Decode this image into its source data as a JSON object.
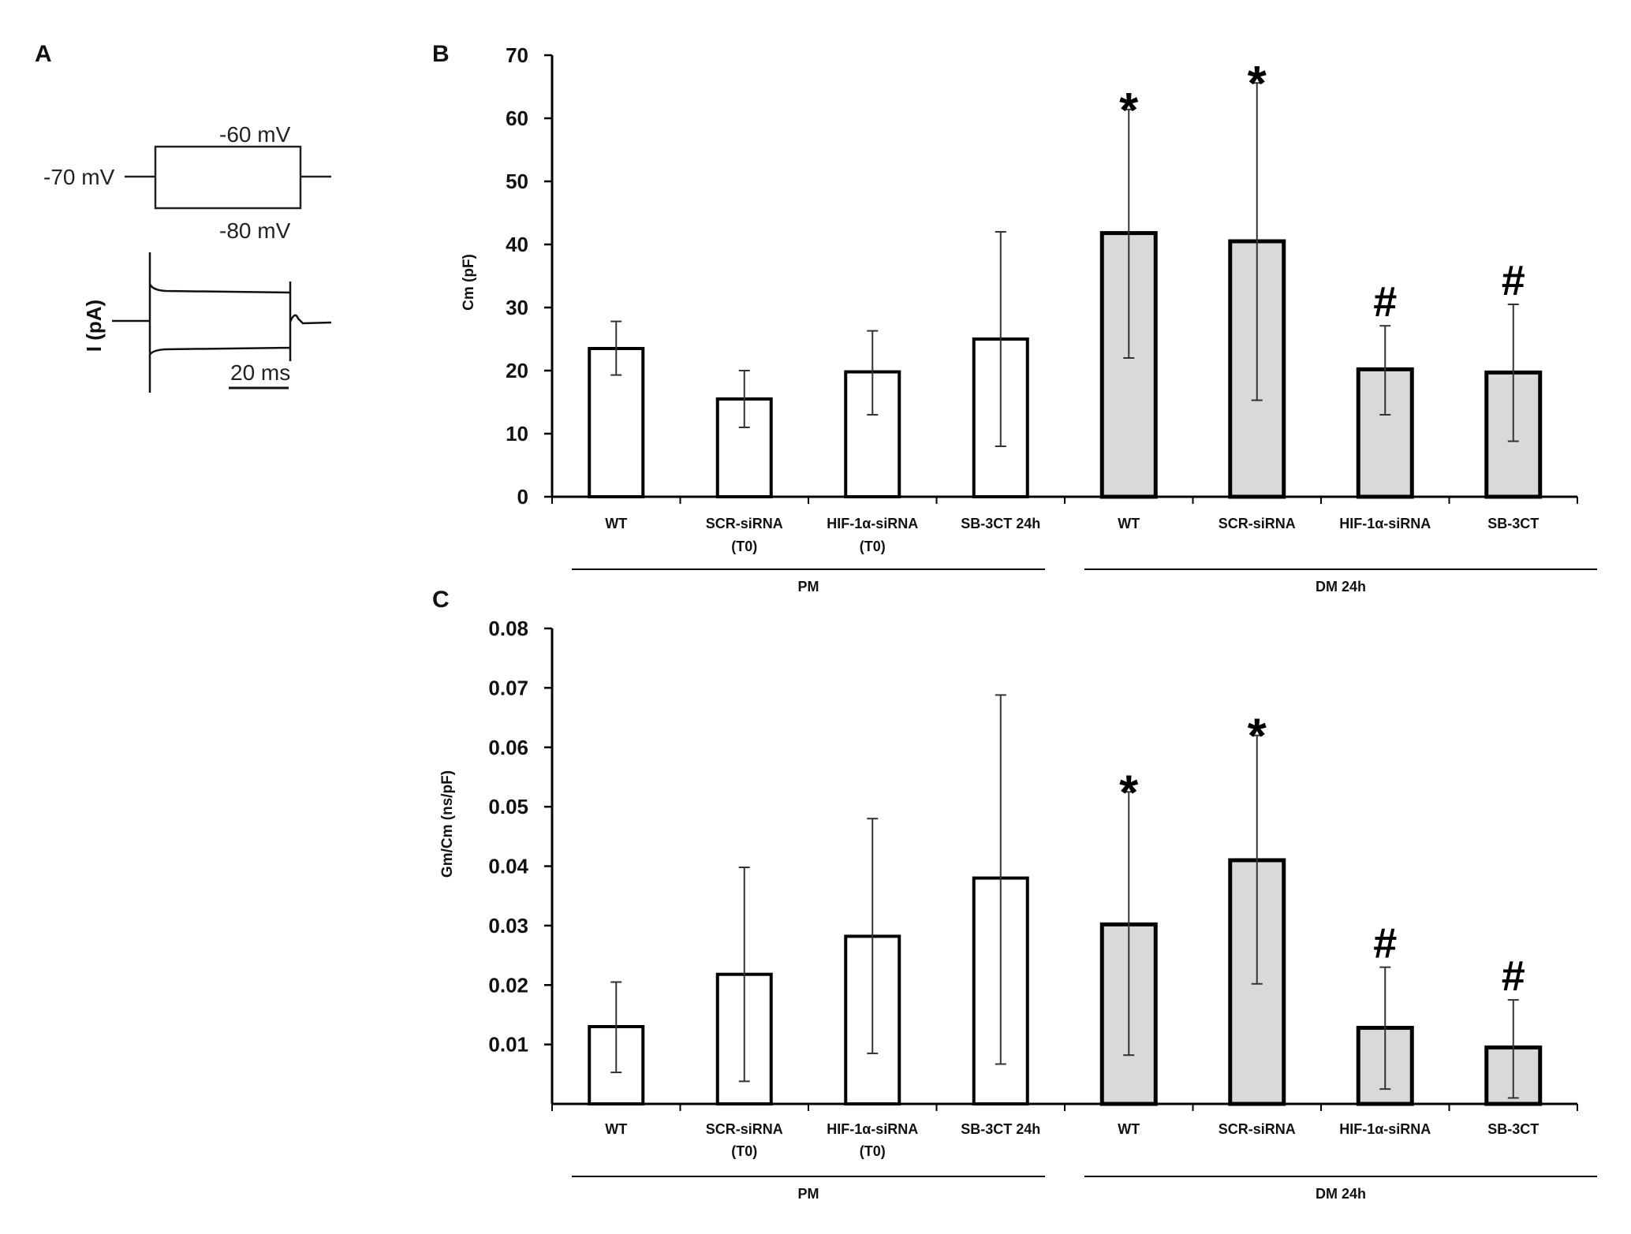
{
  "panel_a": {
    "label": "A",
    "hold_label": "-70 mV",
    "step_up_label": "-60 mV",
    "step_down_label": "-80 mV",
    "current_label": "I (pA)",
    "scale_label": "20 ms"
  },
  "colors": {
    "pm_bar": "#ffffff",
    "dm_bar": "#d9d9d9",
    "outline": "#000000",
    "error_bar": "#333333"
  },
  "chart_data": [
    {
      "panel": "B",
      "type": "bar",
      "ylabel": "Cm (pF)",
      "ylim": [
        0,
        70
      ],
      "yticks": [
        "0",
        "10",
        "20",
        "30",
        "40",
        "50",
        "60",
        "70"
      ],
      "ytick_values": [
        0,
        10,
        20,
        30,
        40,
        50,
        60,
        70
      ],
      "categories": [
        {
          "line1": "WT",
          "line2": ""
        },
        {
          "line1": "SCR-siRNA",
          "line2": "(T0)"
        },
        {
          "line1": "HIF-1α-siRNA",
          "line2": "(T0)"
        },
        {
          "line1": "SB-3CT 24h",
          "line2": ""
        },
        {
          "line1": "WT",
          "line2": ""
        },
        {
          "line1": "SCR-siRNA",
          "line2": ""
        },
        {
          "line1": "HIF-1α-siRNA",
          "line2": ""
        },
        {
          "line1": "SB-3CT",
          "line2": ""
        }
      ],
      "values": [
        23.5,
        15.5,
        19.8,
        25.0,
        41.8,
        40.5,
        20.2,
        19.7
      ],
      "err_low": [
        19.3,
        11.0,
        13.0,
        8.0,
        22.0,
        15.3,
        13.0,
        8.8
      ],
      "err_high": [
        27.8,
        20.0,
        26.3,
        42.0,
        61.4,
        65.6,
        27.1,
        30.5
      ],
      "annotations": [
        "",
        "",
        "",
        "",
        "*",
        "*",
        "#",
        "#"
      ],
      "groups": [
        {
          "label": "PM",
          "from": 0,
          "to": 3
        },
        {
          "label": "DM 24h",
          "from": 4,
          "to": 7
        }
      ]
    },
    {
      "panel": "C",
      "type": "bar",
      "ylabel": "Gm/Cm (ns/pF)",
      "ylim": [
        0,
        0.08
      ],
      "yticks": [
        "0.01",
        "0.02",
        "0.03",
        "0.04",
        "0.05",
        "0.06",
        "0.07",
        "0.08"
      ],
      "ytick_values": [
        0.01,
        0.02,
        0.03,
        0.04,
        0.05,
        0.06,
        0.07,
        0.08
      ],
      "categories": [
        {
          "line1": "WT",
          "line2": ""
        },
        {
          "line1": "SCR-siRNA",
          "line2": "(T0)"
        },
        {
          "line1": "HIF-1α-siRNA",
          "line2": "(T0)"
        },
        {
          "line1": "SB-3CT 24h",
          "line2": ""
        },
        {
          "line1": "WT",
          "line2": ""
        },
        {
          "line1": "SCR-siRNA",
          "line2": ""
        },
        {
          "line1": "HIF-1α-siRNA",
          "line2": ""
        },
        {
          "line1": "SB-3CT",
          "line2": ""
        }
      ],
      "values": [
        0.013,
        0.0218,
        0.0282,
        0.038,
        0.0302,
        0.041,
        0.0128,
        0.0095
      ],
      "err_low": [
        0.0053,
        0.0038,
        0.0085,
        0.0067,
        0.0082,
        0.0202,
        0.0025,
        0.001
      ],
      "err_high": [
        0.0205,
        0.0398,
        0.048,
        0.0688,
        0.0525,
        0.062,
        0.023,
        0.0175
      ],
      "annotations": [
        "",
        "",
        "",
        "",
        "*",
        "*",
        "#",
        "#"
      ],
      "groups": [
        {
          "label": "PM",
          "from": 0,
          "to": 3
        },
        {
          "label": "DM 24h",
          "from": 4,
          "to": 7
        }
      ]
    }
  ]
}
